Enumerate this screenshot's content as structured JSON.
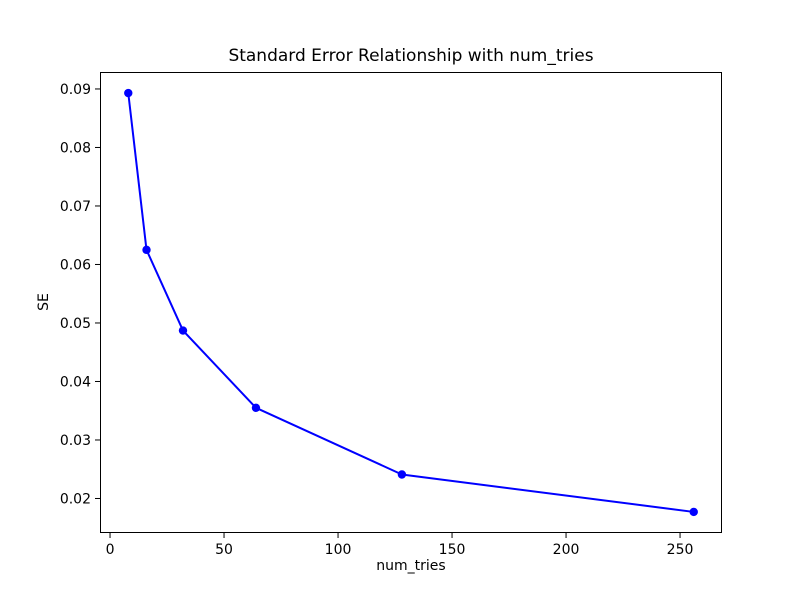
{
  "chart_data": {
    "type": "line",
    "title": "Standard Error Relationship with num_tries",
    "xlabel": "num_tries",
    "ylabel": "SE",
    "x": [
      8,
      16,
      32,
      64,
      128,
      256
    ],
    "y": [
      0.0893,
      0.0625,
      0.0487,
      0.0355,
      0.0241,
      0.0177
    ],
    "series": [
      {
        "name": "SE",
        "values": [
          0.0893,
          0.0625,
          0.0487,
          0.0355,
          0.0241,
          0.0177
        ]
      }
    ],
    "line_color": "#0000ff",
    "marker": "o",
    "marker_color": "#0000ff",
    "background_color": "#ffffff",
    "frame_color": "#000000",
    "text_color": "#000000",
    "grid": false,
    "legend": null,
    "xlim": [
      -4.4,
      268.4
    ],
    "ylim": [
      0.0141,
      0.0929
    ],
    "xticks": {
      "values": [
        0,
        50,
        100,
        150,
        200,
        250
      ],
      "labels": [
        "0",
        "50",
        "100",
        "150",
        "200",
        "250"
      ]
    },
    "yticks": {
      "values": [
        0.02,
        0.03,
        0.04,
        0.05,
        0.06,
        0.07,
        0.08,
        0.09
      ],
      "labels": [
        "0.02",
        "0.03",
        "0.04",
        "0.05",
        "0.06",
        "0.07",
        "0.08",
        "0.09"
      ]
    }
  }
}
